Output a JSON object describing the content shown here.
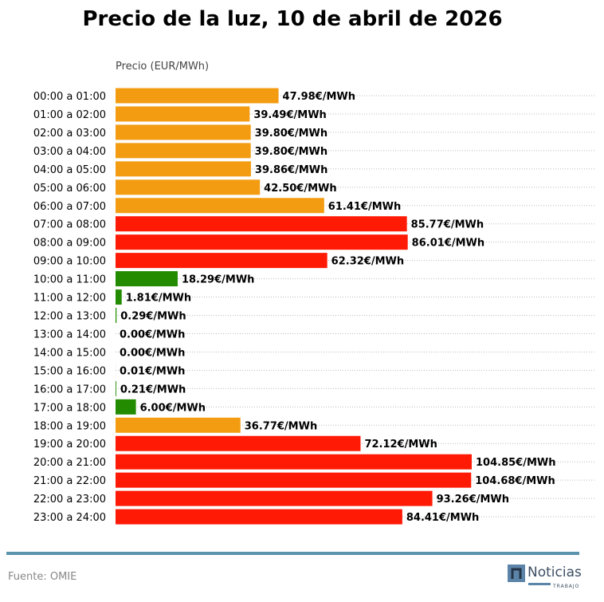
{
  "chart_data": {
    "type": "bar",
    "orientation": "horizontal",
    "title": "Precio de la luz, 10 de abril de 2026",
    "xlabel": "Precio (EUR/MWh)",
    "ylabel": "",
    "value_suffix": "€/MWh",
    "grid": "dotted horizontal",
    "categories": [
      "00:00 a 01:00",
      "01:00 a 02:00",
      "02:00 a 03:00",
      "03:00 a 04:00",
      "04:00 a 05:00",
      "05:00 a 06:00",
      "06:00 a 07:00",
      "07:00 a 08:00",
      "08:00 a 09:00",
      "09:00 a 10:00",
      "10:00 a 11:00",
      "11:00 a 12:00",
      "12:00 a 13:00",
      "13:00 a 14:00",
      "14:00 a 15:00",
      "15:00 a 16:00",
      "16:00 a 17:00",
      "17:00 a 18:00",
      "18:00 a 19:00",
      "19:00 a 20:00",
      "20:00 a 21:00",
      "21:00 a 22:00",
      "22:00 a 23:00",
      "23:00 a 24:00"
    ],
    "values": [
      47.98,
      39.49,
      39.8,
      39.8,
      39.86,
      42.5,
      61.41,
      85.77,
      86.01,
      62.32,
      18.29,
      1.81,
      0.29,
      0.0,
      0.0,
      0.01,
      0.21,
      6.0,
      36.77,
      72.12,
      104.85,
      104.68,
      93.26,
      84.41
    ],
    "levels": [
      "medium",
      "medium",
      "medium",
      "medium",
      "medium",
      "medium",
      "medium",
      "high",
      "high",
      "high",
      "low",
      "low",
      "low",
      "low",
      "low",
      "low",
      "low",
      "low",
      "medium",
      "high",
      "high",
      "high",
      "high",
      "high"
    ],
    "colors": {
      "low": "#228b00",
      "medium": "#f39c12",
      "high": "#ff1a05"
    },
    "xlim": [
      0,
      104.85
    ]
  },
  "footer": {
    "source": "Fuente: OMIE",
    "logo_text": "Noticias",
    "logo_sub": "TRABAJO",
    "rule_color": "#5b93ad"
  }
}
